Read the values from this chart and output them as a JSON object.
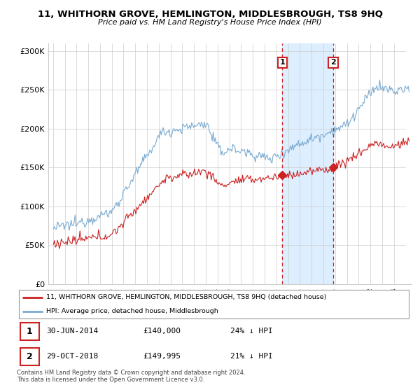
{
  "title": "11, WHITHORN GROVE, HEMLINGTON, MIDDLESBROUGH, TS8 9HQ",
  "subtitle": "Price paid vs. HM Land Registry's House Price Index (HPI)",
  "ylabel_ticks": [
    "£0",
    "£50K",
    "£100K",
    "£150K",
    "£200K",
    "£250K",
    "£300K"
  ],
  "ytick_values": [
    0,
    50000,
    100000,
    150000,
    200000,
    250000,
    300000
  ],
  "ylim": [
    0,
    310000
  ],
  "xlim_start": 1994.6,
  "xlim_end": 2025.5,
  "marker1_x": 2014.496,
  "marker1_y": 140000,
  "marker2_x": 2018.829,
  "marker2_y": 149995,
  "legend_red_label": "11, WHITHORN GROVE, HEMLINGTON, MIDDLESBROUGH, TS8 9HQ (detached house)",
  "legend_blue_label": "HPI: Average price, detached house, Middlesbrough",
  "table_rows": [
    {
      "num": "1",
      "date": "30-JUN-2014",
      "price": "£140,000",
      "hpi": "24% ↓ HPI"
    },
    {
      "num": "2",
      "date": "29-OCT-2018",
      "price": "£149,995",
      "hpi": "21% ↓ HPI"
    }
  ],
  "footnote": "Contains HM Land Registry data © Crown copyright and database right 2024.\nThis data is licensed under the Open Government Licence v3.0.",
  "red_color": "#cc2222",
  "blue_color": "#7aaad0",
  "shaded_color": "#ddeeff",
  "grid_color": "#cccccc",
  "background_color": "#ffffff"
}
